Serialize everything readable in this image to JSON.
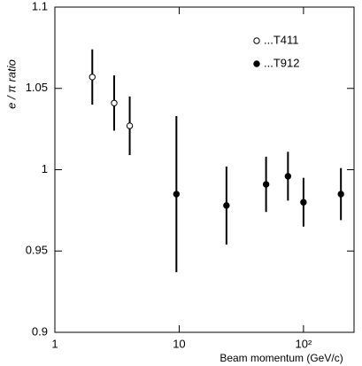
{
  "chart_data": {
    "type": "scatter",
    "x_label": "Beam momentum (GeV/c)",
    "y_label": "e / π ratio",
    "xscale": "log",
    "xlim": [
      1,
      255
    ],
    "ylim": [
      0.9,
      1.1
    ],
    "xticks": [
      1,
      10,
      {
        "value": 100,
        "label": "10²"
      }
    ],
    "yticks": [
      0.9,
      0.95,
      1,
      1.05,
      1.1
    ],
    "legend": "upper right",
    "series": [
      {
        "name": "...T411",
        "color": "#000000",
        "marker": "open",
        "x": [
          2,
          3,
          4
        ],
        "values": [
          1.057,
          1.041,
          1.027
        ],
        "errors": [
          0.017,
          0.017,
          0.018
        ]
      },
      {
        "name": "...T912",
        "color": "#000000",
        "marker": "filled",
        "x": [
          9.5,
          24,
          50,
          75,
          100,
          200
        ],
        "values": [
          0.985,
          0.978,
          0.991,
          0.996,
          0.98,
          0.985
        ],
        "errors": [
          0.048,
          0.024,
          0.017,
          0.015,
          0.015,
          0.016
        ]
      }
    ]
  }
}
